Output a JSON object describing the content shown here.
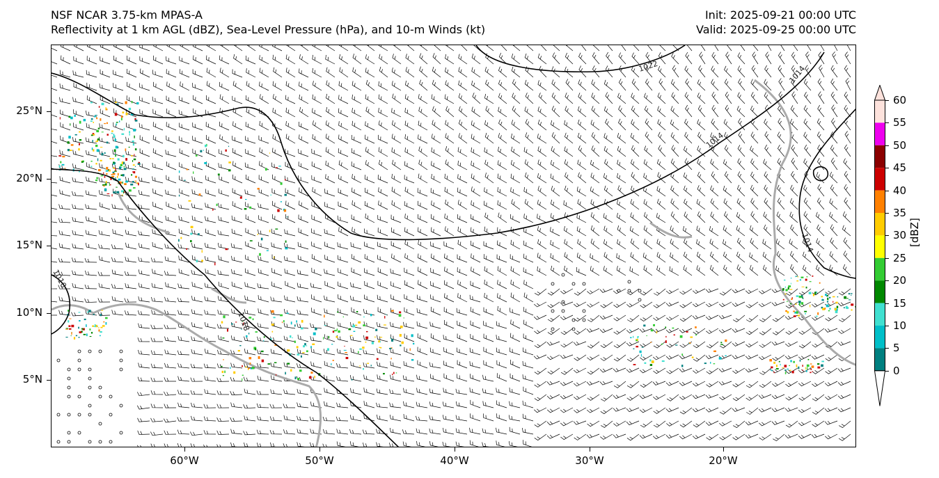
{
  "title": {
    "model": "NSF NCAR 3.75-km MPAS-A",
    "fields": "Reflectivity at 1 km AGL (dBZ), Sea-Level Pressure (hPa), and 10-m Winds (kt)",
    "init": "Init: 2025-09-21 00:00 UTC",
    "valid": "Valid: 2025-09-25 00:00 UTC"
  },
  "axes": {
    "lat_labels": [
      "25°N",
      "20°N",
      "15°N",
      "10°N",
      "5°N"
    ],
    "lon_labels": [
      "60°W",
      "50°W",
      "40°W",
      "30°W",
      "20°W"
    ]
  },
  "isobars": {
    "labels": [
      "1022",
      "1018",
      "1014",
      "1014",
      "1014",
      "1010"
    ]
  },
  "colorbar": {
    "unit": "[dBZ]",
    "labels": [
      "60",
      "55",
      "50",
      "45",
      "40",
      "35",
      "30",
      "25",
      "20",
      "15",
      "10",
      "5",
      "0"
    ],
    "colors": [
      "#fde2dc",
      "#ee00ee",
      "#8b0000",
      "#cc0000",
      "#ff8000",
      "#ffcc00",
      "#ffff00",
      "#33cc33",
      "#008800",
      "#40e0d0",
      "#00bfc8",
      "#008080",
      "#ffffff"
    ]
  },
  "colors": {
    "land_outline": "#aaaaaa",
    "isobar": "#000000",
    "barb": "#000000"
  }
}
